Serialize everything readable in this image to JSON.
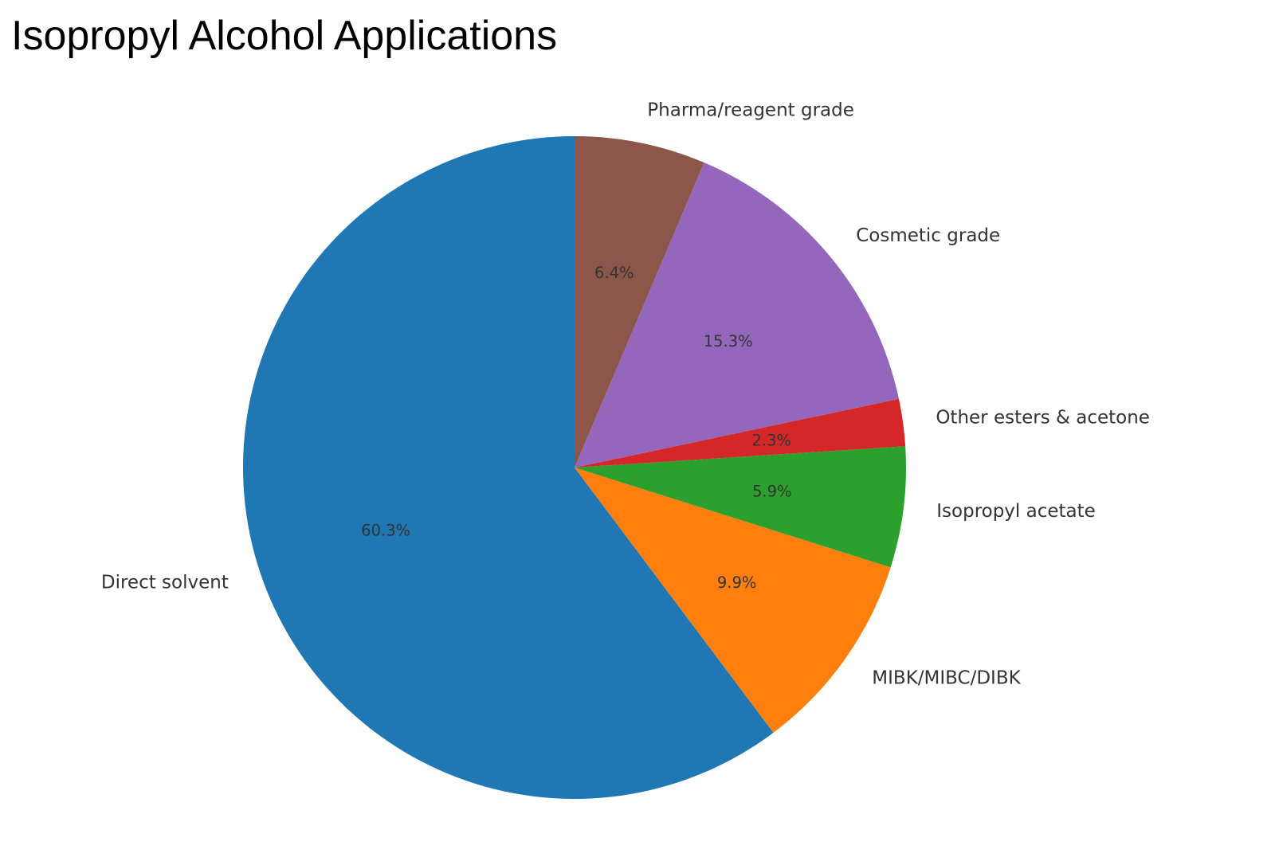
{
  "chart_data": {
    "type": "pie",
    "title": "Isopropyl Alcohol Applications",
    "start_angle_deg": 90,
    "direction": "counterclockwise",
    "slices": [
      {
        "label": "Direct solvent",
        "value": 60.3,
        "pct_label": "60.3%",
        "color": "#1f77b4"
      },
      {
        "label": "MIBK/MIBC/DIBK",
        "value": 9.9,
        "pct_label": "9.9%",
        "color": "#ff7f0e"
      },
      {
        "label": "Isopropyl acetate",
        "value": 5.9,
        "pct_label": "5.9%",
        "color": "#2ca02c"
      },
      {
        "label": "Other esters & acetone",
        "value": 2.3,
        "pct_label": "2.3%",
        "color": "#d62728"
      },
      {
        "label": "Cosmetic grade",
        "value": 15.3,
        "pct_label": "15.3%",
        "color": "#9467bd"
      },
      {
        "label": "Pharma/reagent grade",
        "value": 6.4,
        "pct_label": "6.4%",
        "color": "#8c564b"
      }
    ]
  }
}
